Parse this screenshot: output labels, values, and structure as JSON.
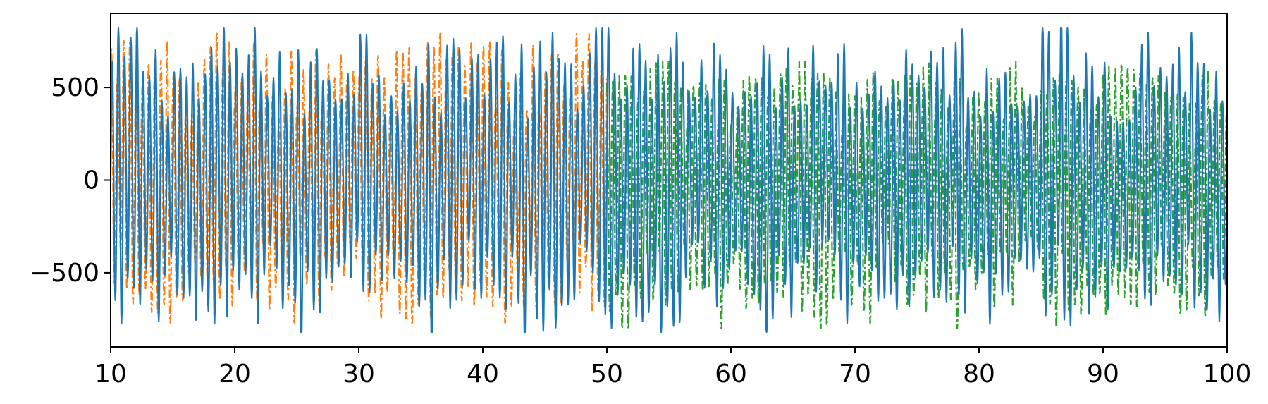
{
  "chart_data": {
    "type": "line",
    "title": "",
    "xlabel": "",
    "ylabel": "",
    "xlim": [
      10,
      100
    ],
    "ylim": [
      -900,
      900
    ],
    "x_ticks": [
      10,
      20,
      30,
      40,
      50,
      60,
      70,
      80,
      90,
      100
    ],
    "x_tick_labels": [
      "10",
      "20",
      "30",
      "40",
      "50",
      "60",
      "70",
      "80",
      "90",
      "100"
    ],
    "y_ticks": [
      -500,
      0,
      500
    ],
    "y_tick_labels": [
      "−500",
      "0",
      "500"
    ],
    "grid": false,
    "legend": "none",
    "series": [
      {
        "color": "#1f77b4",
        "linestyle": "solid",
        "x_range": [
          10,
          100
        ],
        "oscillation_period": 0.5,
        "amplitude_range": [
          -820,
          820
        ]
      },
      {
        "color": "#ff7f0e",
        "linestyle": "dashdot",
        "x_range": [
          10,
          50
        ],
        "oscillation_period": 0.5,
        "amplitude_range": [
          -770,
          790
        ]
      },
      {
        "color": "#2ca02c",
        "linestyle": "dashdot",
        "x_range": [
          50,
          100
        ],
        "oscillation_period": 0.5,
        "amplitude_range": [
          -800,
          640
        ]
      }
    ]
  }
}
